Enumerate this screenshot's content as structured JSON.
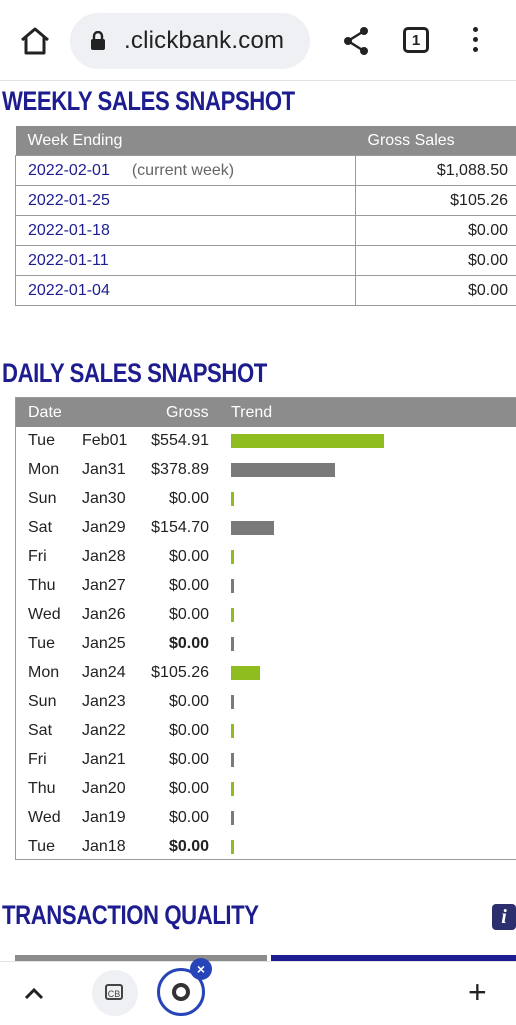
{
  "browser": {
    "url": ".clickbank.com",
    "tab_count": "1"
  },
  "weekly": {
    "title": "WEEKLY SALES SNAPSHOT",
    "headers": [
      "Week Ending",
      "Gross Sales"
    ],
    "current_note": "(current week)",
    "rows": [
      {
        "date": "2022-02-01",
        "gross": "$1,088.50"
      },
      {
        "date": "2022-01-25",
        "gross": "$105.26"
      },
      {
        "date": "2022-01-18",
        "gross": "$0.00"
      },
      {
        "date": "2022-01-11",
        "gross": "$0.00"
      },
      {
        "date": "2022-01-04",
        "gross": "$0.00"
      }
    ]
  },
  "daily": {
    "title": "DAILY SALES SNAPSHOT",
    "headers": [
      "Date",
      "Gross",
      "Trend"
    ],
    "colors": {
      "green": "#8fbc1f",
      "gray": "#7a7a7a"
    },
    "rows": [
      {
        "day": "Tue",
        "date": "Feb01",
        "gross": "$554.91",
        "value": 554.91,
        "bold": false,
        "color": "green"
      },
      {
        "day": "Mon",
        "date": "Jan31",
        "gross": "$378.89",
        "value": 378.89,
        "bold": false,
        "color": "gray"
      },
      {
        "day": "Sun",
        "date": "Jan30",
        "gross": "$0.00",
        "value": 0,
        "bold": false,
        "color": "green"
      },
      {
        "day": "Sat",
        "date": "Jan29",
        "gross": "$154.70",
        "value": 154.7,
        "bold": false,
        "color": "gray"
      },
      {
        "day": "Fri",
        "date": "Jan28",
        "gross": "$0.00",
        "value": 0,
        "bold": false,
        "color": "green"
      },
      {
        "day": "Thu",
        "date": "Jan27",
        "gross": "$0.00",
        "value": 0,
        "bold": false,
        "color": "gray"
      },
      {
        "day": "Wed",
        "date": "Jan26",
        "gross": "$0.00",
        "value": 0,
        "bold": false,
        "color": "green"
      },
      {
        "day": "Tue",
        "date": "Jan25",
        "gross": "$0.00",
        "value": 0,
        "bold": true,
        "color": "gray"
      },
      {
        "day": "Mon",
        "date": "Jan24",
        "gross": "$105.26",
        "value": 105.26,
        "bold": false,
        "color": "green"
      },
      {
        "day": "Sun",
        "date": "Jan23",
        "gross": "$0.00",
        "value": 0,
        "bold": false,
        "color": "gray"
      },
      {
        "day": "Sat",
        "date": "Jan22",
        "gross": "$0.00",
        "value": 0,
        "bold": false,
        "color": "green"
      },
      {
        "day": "Fri",
        "date": "Jan21",
        "gross": "$0.00",
        "value": 0,
        "bold": false,
        "color": "gray"
      },
      {
        "day": "Thu",
        "date": "Jan20",
        "gross": "$0.00",
        "value": 0,
        "bold": false,
        "color": "green"
      },
      {
        "day": "Wed",
        "date": "Jan19",
        "gross": "$0.00",
        "value": 0,
        "bold": false,
        "color": "gray"
      },
      {
        "day": "Tue",
        "date": "Jan18",
        "gross": "$0.00",
        "value": 0,
        "bold": true,
        "color": "green"
      }
    ]
  },
  "quality": {
    "title": "TRANSACTION QUALITY",
    "info_icon_glyph": "i"
  },
  "bottom": {
    "tab_icon_text": "CB",
    "close_glyph": "×",
    "plus_glyph": "+"
  }
}
